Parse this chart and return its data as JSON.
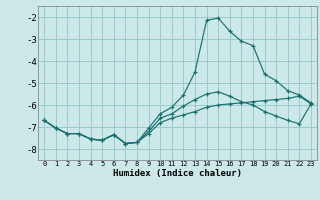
{
  "xlabel": "Humidex (Indice chaleur)",
  "xlim": [
    -0.5,
    23.5
  ],
  "ylim": [
    -8.5,
    -1.5
  ],
  "yticks": [
    -8,
    -7,
    -6,
    -5,
    -4,
    -3,
    -2
  ],
  "xticks": [
    0,
    1,
    2,
    3,
    4,
    5,
    6,
    7,
    8,
    9,
    10,
    11,
    12,
    13,
    14,
    15,
    16,
    17,
    18,
    19,
    20,
    21,
    22,
    23
  ],
  "bg_color": "#cce8e8",
  "grid_color": "#99cccc",
  "line_color": "#1a7070",
  "curve_main_x": [
    0,
    1,
    2,
    3,
    4,
    5,
    6,
    7,
    8,
    9,
    10,
    11,
    12,
    13,
    14,
    15,
    16,
    17,
    18,
    19,
    20,
    21,
    22,
    23
  ],
  "curve_main_y": [
    -6.7,
    -7.05,
    -7.3,
    -7.3,
    -7.55,
    -7.6,
    -7.35,
    -7.75,
    -7.7,
    -7.05,
    -6.4,
    -6.1,
    -5.55,
    -4.5,
    -2.15,
    -2.05,
    -2.65,
    -3.1,
    -3.3,
    -4.6,
    -4.9,
    -5.35,
    -5.55,
    -5.9
  ],
  "curve_mid_x": [
    0,
    1,
    2,
    3,
    4,
    5,
    6,
    7,
    8,
    9,
    10,
    11,
    12,
    13,
    14,
    15,
    16,
    17,
    18,
    19,
    20,
    21,
    22,
    23
  ],
  "curve_mid_y": [
    -6.7,
    -7.05,
    -7.3,
    -7.3,
    -7.55,
    -7.6,
    -7.35,
    -7.75,
    -7.7,
    -7.2,
    -6.6,
    -6.4,
    -6.05,
    -5.75,
    -5.5,
    -5.4,
    -5.6,
    -5.85,
    -6.0,
    -6.3,
    -6.5,
    -6.7,
    -6.85,
    -5.95
  ],
  "curve_low_x": [
    0,
    1,
    2,
    3,
    4,
    5,
    6,
    7,
    8,
    9,
    10,
    11,
    12,
    13,
    14,
    15,
    16,
    17,
    18,
    19,
    20,
    21,
    22,
    23
  ],
  "curve_low_y": [
    -6.7,
    -7.05,
    -7.3,
    -7.3,
    -7.55,
    -7.6,
    -7.35,
    -7.75,
    -7.7,
    -7.3,
    -6.8,
    -6.6,
    -6.45,
    -6.3,
    -6.1,
    -6.0,
    -5.95,
    -5.9,
    -5.85,
    -5.8,
    -5.75,
    -5.7,
    -5.6,
    -5.95
  ]
}
